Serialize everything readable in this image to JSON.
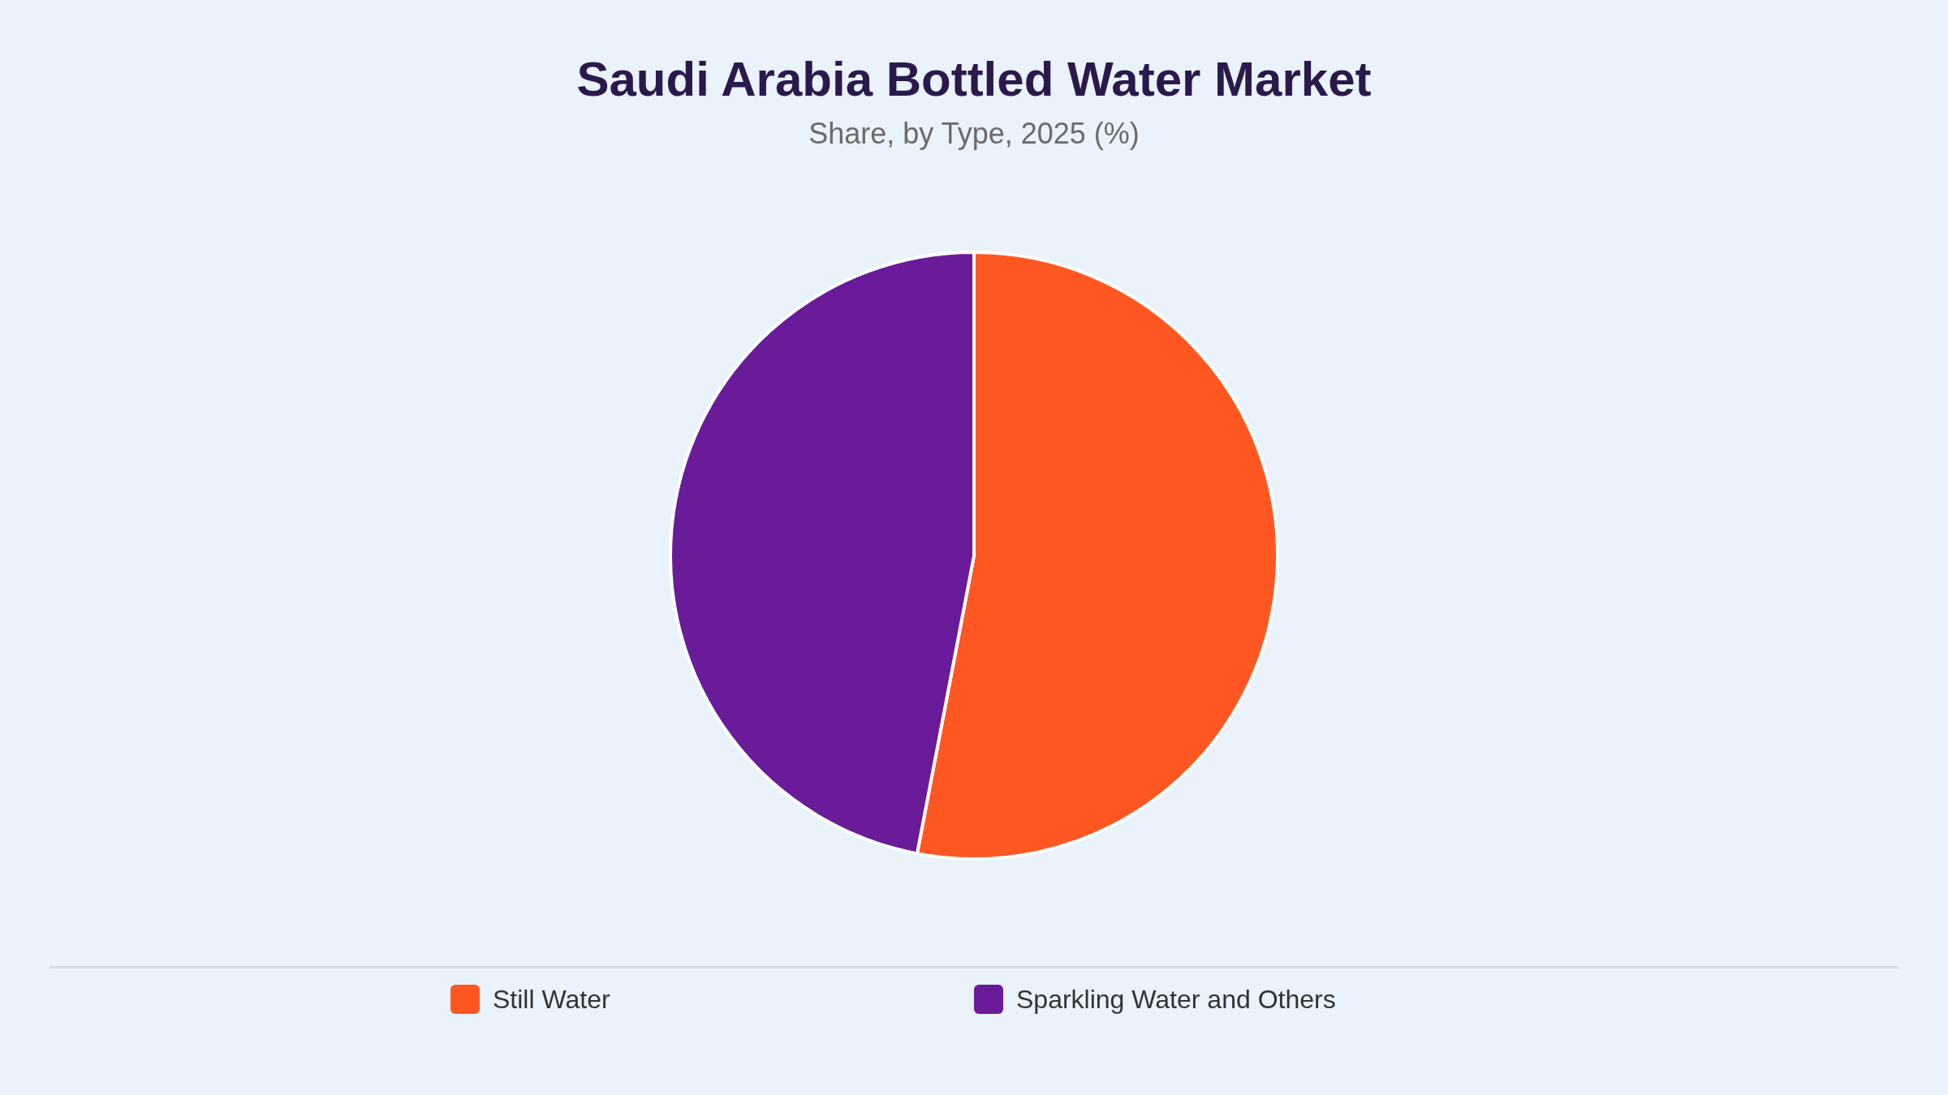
{
  "chart_data": {
    "type": "pie",
    "title": "Saudi Arabia Bottled Water Market",
    "subtitle": "Share, by Type, 2025 (%)",
    "categories": [
      "Still Water",
      "Sparkling Water and Others"
    ],
    "values": [
      53,
      47
    ],
    "colors": [
      "#ff5722",
      "#6a1b9a"
    ],
    "legend": "bottom"
  }
}
